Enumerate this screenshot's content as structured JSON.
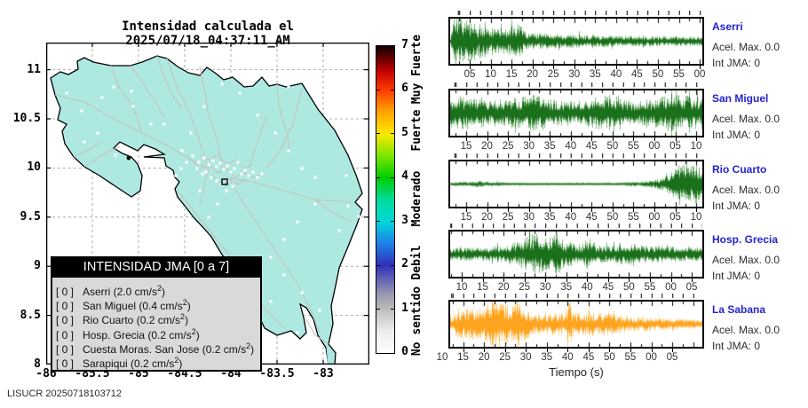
{
  "title": "Intensidad calculada el 2025/07/18_04:37:11_AM",
  "watermark": "LISUCR 20250718103712",
  "map": {
    "land_color": "#aee9e1",
    "road_color": "#c7c1bd",
    "grid_color": "#9a9a9a",
    "x_tick_labels": [
      "-86",
      "-85.5",
      "-85",
      "-84.5",
      "-84",
      "-83.5",
      "-83"
    ],
    "y_tick_labels": [
      "11",
      "10.5",
      "10",
      "9.5",
      "9",
      "8.5",
      "8"
    ],
    "legend": {
      "title": "INTENSIDAD JMA [0 a 7]",
      "items": [
        {
          "bracket": "[ 0 ]",
          "text": "Aserri (2.0 cm/s",
          "sup": "2",
          "close": ")"
        },
        {
          "bracket": "[ 0 ]",
          "text": "San Miguel (0.4 cm/s",
          "sup": "2",
          "close": ")"
        },
        {
          "bracket": "[ 0 ]",
          "text": "Rio Cuarto (0.2 cm/s",
          "sup": "2",
          "close": ")"
        },
        {
          "bracket": "[ 0 ]",
          "text": "Hosp. Grecia (0.2 cm/s",
          "sup": "2",
          "close": ")"
        },
        {
          "bracket": "[ 0 ]",
          "text": "Cuesta Moras. San Jose (0.2 cm/s",
          "sup": "2",
          "close": ")"
        },
        {
          "bracket": "[ 0 ]",
          "text": "Sarapiqui (0.2 cm/s",
          "sup": "2",
          "close": ")"
        }
      ]
    }
  },
  "colorbar": {
    "tick_labels": [
      "0",
      "1",
      "2",
      "3",
      "4",
      "5",
      "6",
      "7"
    ],
    "category_labels": [
      {
        "text": "No sentido",
        "intensity": 0.7
      },
      {
        "text": "Debil",
        "intensity": 2.05
      },
      {
        "text": "Moderado",
        "intensity": 3.5
      },
      {
        "text": "Fuerte",
        "intensity": 5.05
      },
      {
        "text": "Muy Fuerte",
        "intensity": 6.45
      }
    ],
    "gradient_stops": [
      [
        0.0,
        "#ffffff"
      ],
      [
        0.07,
        "#ededed"
      ],
      [
        0.143,
        "#bcbcbc"
      ],
      [
        0.19,
        "#9a9ab0"
      ],
      [
        0.286,
        "#3030b8"
      ],
      [
        0.357,
        "#2080e8"
      ],
      [
        0.429,
        "#00d8d8"
      ],
      [
        0.5,
        "#00dc9a"
      ],
      [
        0.571,
        "#00cc00"
      ],
      [
        0.643,
        "#7ce600"
      ],
      [
        0.714,
        "#ffe800"
      ],
      [
        0.786,
        "#ffa300"
      ],
      [
        0.857,
        "#ff3a00"
      ],
      [
        0.92,
        "#c00000"
      ],
      [
        0.97,
        "#500000"
      ],
      [
        1.0,
        "#120000"
      ]
    ]
  },
  "seismograms": {
    "time_axis_label": "Tiempo (s)",
    "station_label_color": "#2424cf",
    "panels": [
      {
        "name": "Aserri",
        "accel": "Acel. Max. 0.0",
        "jma": "Int JMA: 0",
        "color_main": "#1b701b",
        "color_light": "#7fb77f",
        "tick_offset": 24,
        "seed": 7,
        "tick_labels": [
          "05",
          "10",
          "15",
          "20",
          "25",
          "30",
          "35",
          "40",
          "45",
          "50",
          "55",
          "00"
        ],
        "envelope": [
          [
            0,
            0.12
          ],
          [
            0.015,
            1.0
          ],
          [
            0.05,
            0.85
          ],
          [
            0.1,
            0.55
          ],
          [
            0.16,
            0.5
          ],
          [
            0.22,
            0.42
          ],
          [
            0.27,
            0.62
          ],
          [
            0.3,
            0.3
          ],
          [
            0.38,
            0.26
          ],
          [
            0.5,
            0.22
          ],
          [
            0.65,
            0.18
          ],
          [
            0.8,
            0.16
          ],
          [
            1,
            0.15
          ]
        ]
      },
      {
        "name": "San Miguel",
        "accel": "Acel. Max. 0.0",
        "jma": "Int JMA: 0",
        "color_main": "#1b701b",
        "color_light": "#7fb77f",
        "tick_offset": 20,
        "seed": 11,
        "tick_labels": [
          "15",
          "20",
          "25",
          "30",
          "35",
          "40",
          "45",
          "50",
          "55",
          "00",
          "05",
          "10"
        ],
        "envelope": [
          [
            0,
            0.55
          ],
          [
            0.05,
            0.62
          ],
          [
            0.1,
            0.5
          ],
          [
            0.15,
            0.45
          ],
          [
            0.2,
            0.48
          ],
          [
            0.25,
            0.52
          ],
          [
            0.3,
            0.6
          ],
          [
            0.35,
            0.72
          ],
          [
            0.38,
            0.5
          ],
          [
            0.45,
            0.45
          ],
          [
            0.5,
            0.42
          ],
          [
            0.55,
            0.5
          ],
          [
            0.6,
            0.62
          ],
          [
            0.65,
            0.7
          ],
          [
            0.7,
            0.45
          ],
          [
            0.75,
            0.42
          ],
          [
            0.8,
            0.45
          ],
          [
            0.85,
            0.6
          ],
          [
            0.9,
            0.68
          ],
          [
            0.95,
            0.6
          ],
          [
            1,
            0.55
          ]
        ]
      },
      {
        "name": "Rio Cuarto",
        "accel": "Acel. Max. 0.0",
        "jma": "Int JMA: 0",
        "color_main": "#1b701b",
        "color_light": "#7fb77f",
        "tick_offset": 20,
        "seed": 23,
        "tick_labels": [
          "15",
          "20",
          "25",
          "30",
          "35",
          "40",
          "45",
          "50",
          "55",
          "00",
          "05",
          "10"
        ],
        "envelope": [
          [
            0,
            0.04
          ],
          [
            0.08,
            0.07
          ],
          [
            0.12,
            0.1
          ],
          [
            0.16,
            0.06
          ],
          [
            0.25,
            0.035
          ],
          [
            0.4,
            0.03
          ],
          [
            0.55,
            0.03
          ],
          [
            0.68,
            0.04
          ],
          [
            0.72,
            0.07
          ],
          [
            0.76,
            0.06
          ],
          [
            0.8,
            0.12
          ],
          [
            0.84,
            0.2
          ],
          [
            0.88,
            0.45
          ],
          [
            0.91,
            0.85
          ],
          [
            0.94,
            0.55
          ],
          [
            0.97,
            0.75
          ],
          [
            1,
            0.45
          ]
        ]
      },
      {
        "name": "Hosp. Grecia",
        "accel": "Acel. Max. 0.0",
        "jma": "Int JMA: 0",
        "color_main": "#1b701b",
        "color_light": "#7fb77f",
        "tick_offset": 15,
        "seed": 31,
        "tick_labels": [
          "10",
          "15",
          "20",
          "25",
          "30",
          "35",
          "40",
          "45",
          "50",
          "55",
          "00",
          "05"
        ],
        "envelope": [
          [
            0,
            0.2
          ],
          [
            0.08,
            0.22
          ],
          [
            0.15,
            0.25
          ],
          [
            0.22,
            0.3
          ],
          [
            0.27,
            0.45
          ],
          [
            0.3,
            0.6
          ],
          [
            0.33,
            0.8
          ],
          [
            0.36,
            0.7
          ],
          [
            0.4,
            0.62
          ],
          [
            0.42,
            0.9
          ],
          [
            0.45,
            0.5
          ],
          [
            0.48,
            0.4
          ],
          [
            0.52,
            0.35
          ],
          [
            0.55,
            0.6
          ],
          [
            0.58,
            0.3
          ],
          [
            0.65,
            0.3
          ],
          [
            0.7,
            0.38
          ],
          [
            0.75,
            0.3
          ],
          [
            0.82,
            0.28
          ],
          [
            0.9,
            0.25
          ],
          [
            1,
            0.22
          ]
        ]
      },
      {
        "name": "La Sabana",
        "accel": "Acel. Max. 0.0",
        "jma": "Int JMA: 0",
        "color_main": "#ffa41e",
        "color_light": "#ffd089",
        "tick_offset": -7,
        "seed": 43,
        "tick_labels": [
          "10",
          "15",
          "20",
          "25",
          "30",
          "35",
          "40",
          "45",
          "50",
          "55",
          "00",
          "05"
        ],
        "envelope": [
          [
            0,
            0.3
          ],
          [
            0.04,
            0.5
          ],
          [
            0.08,
            0.55
          ],
          [
            0.12,
            0.6
          ],
          [
            0.16,
            0.75
          ],
          [
            0.2,
            0.85
          ],
          [
            0.24,
            0.65
          ],
          [
            0.27,
            0.9
          ],
          [
            0.3,
            0.55
          ],
          [
            0.33,
            0.35
          ],
          [
            0.38,
            0.32
          ],
          [
            0.42,
            0.45
          ],
          [
            0.45,
            0.38
          ],
          [
            0.465,
            0.85
          ],
          [
            0.49,
            0.4
          ],
          [
            0.53,
            0.38
          ],
          [
            0.57,
            0.42
          ],
          [
            0.62,
            0.38
          ],
          [
            0.68,
            0.3
          ],
          [
            0.75,
            0.25
          ],
          [
            0.82,
            0.2
          ],
          [
            0.9,
            0.17
          ],
          [
            1,
            0.15
          ]
        ]
      }
    ]
  },
  "chart_data": {
    "type": "line",
    "title": "Intensidad calculada el 2025/07/18_04:37:11_AM",
    "map_axes": {
      "lon_range": [
        -86,
        -82.5
      ],
      "lat_range": [
        8,
        11.28
      ],
      "grid": true
    },
    "intensity_scale": {
      "range": [
        0,
        7
      ],
      "categories": [
        "No sentido",
        "Debil",
        "Moderado",
        "Fuerte",
        "Muy Fuerte"
      ]
    },
    "stations": [
      {
        "name": "Aserri",
        "intensity_jma": 0,
        "accel_max_cm_s2": 2.0
      },
      {
        "name": "San Miguel",
        "intensity_jma": 0,
        "accel_max_cm_s2": 0.4
      },
      {
        "name": "Rio Cuarto",
        "intensity_jma": 0,
        "accel_max_cm_s2": 0.2
      },
      {
        "name": "Hosp. Grecia",
        "intensity_jma": 0,
        "accel_max_cm_s2": 0.2
      },
      {
        "name": "Cuesta Moras. San Jose",
        "intensity_jma": 0,
        "accel_max_cm_s2": 0.2
      },
      {
        "name": "Sarapiqui",
        "intensity_jma": 0,
        "accel_max_cm_s2": 0.2
      }
    ],
    "waveform_panels": [
      {
        "station": "Aserri",
        "acel_max": 0.0,
        "int_jma": 0,
        "xlabel": "Tiempo (s)"
      },
      {
        "station": "San Miguel",
        "acel_max": 0.0,
        "int_jma": 0,
        "xlabel": "Tiempo (s)"
      },
      {
        "station": "Rio Cuarto",
        "acel_max": 0.0,
        "int_jma": 0,
        "xlabel": "Tiempo (s)"
      },
      {
        "station": "Hosp. Grecia",
        "acel_max": 0.0,
        "int_jma": 0,
        "xlabel": "Tiempo (s)"
      },
      {
        "station": "La Sabana",
        "acel_max": 0.0,
        "int_jma": 0,
        "xlabel": "Tiempo (s)"
      }
    ]
  }
}
